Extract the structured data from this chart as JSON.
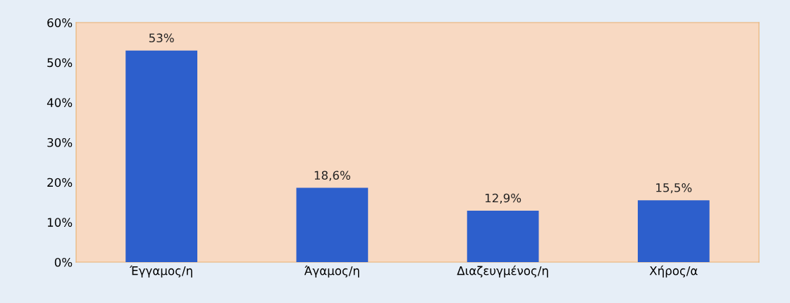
{
  "chart_data": {
    "type": "bar",
    "categories": [
      "Έγγαμος/η",
      "Άγαμος/η",
      "Διαζευγμένος/η",
      "Χήρος/α"
    ],
    "values": [
      53,
      18.6,
      12.9,
      15.5
    ],
    "color": "#2d5fcc",
    "value_labels": [
      "53%",
      "18,6%",
      "12,9%",
      "15,5%"
    ],
    "ylim": [
      0,
      60
    ],
    "yticks": [
      {
        "value": 0,
        "label": "0%"
      },
      {
        "value": 10,
        "label": "10%"
      },
      {
        "value": 20,
        "label": "20%"
      },
      {
        "value": 30,
        "label": "30%"
      },
      {
        "value": 40,
        "label": "40%"
      },
      {
        "value": 50,
        "label": "50%"
      },
      {
        "value": 60,
        "label": "60%"
      }
    ],
    "grid": false
  }
}
